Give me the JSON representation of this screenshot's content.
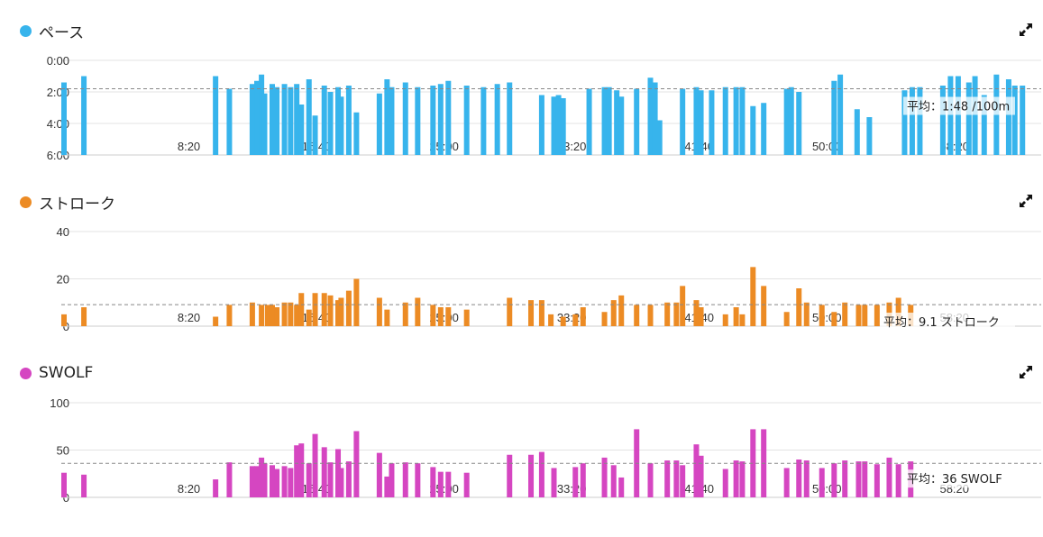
{
  "panels": [
    {
      "id": "pace",
      "title": "ペース",
      "color": "#37b4ec"
    },
    {
      "id": "stroke",
      "title": "ストローク",
      "color": "#ec8b24"
    },
    {
      "id": "swolf",
      "title": "SWOLF",
      "color": "#d546c1"
    }
  ],
  "icons": {
    "expand": "expand-arrows-icon"
  },
  "chart_data": [
    {
      "type": "bar",
      "title": "ペース",
      "color": "#37b4ec",
      "inverted_y": true,
      "ylim": [
        0,
        6
      ],
      "yticks": [
        "0:00",
        "2:00",
        "4:00",
        "6:00"
      ],
      "x_range_minutes": [
        0,
        64
      ],
      "xticks": [
        "8:20",
        "16:40",
        "25:00",
        "33:20",
        "41:40",
        "50:00",
        "58:20"
      ],
      "average_value": 1.8,
      "average_label": "平均：1:48 /100m",
      "bars": [
        [
          0.0,
          1.4
        ],
        [
          1.3,
          1.0
        ],
        [
          9.9,
          1.0
        ],
        [
          10.8,
          1.8
        ],
        [
          12.3,
          1.5
        ],
        [
          12.6,
          1.3
        ],
        [
          12.9,
          0.9
        ],
        [
          13.1,
          2.1
        ],
        [
          13.6,
          1.5
        ],
        [
          13.9,
          1.7
        ],
        [
          14.4,
          1.5
        ],
        [
          14.8,
          1.7
        ],
        [
          15.2,
          1.5
        ],
        [
          15.5,
          2.8
        ],
        [
          16.0,
          1.2
        ],
        [
          16.4,
          3.5
        ],
        [
          17.0,
          1.6
        ],
        [
          17.4,
          2.0
        ],
        [
          17.9,
          1.7
        ],
        [
          18.1,
          2.3
        ],
        [
          18.6,
          1.6
        ],
        [
          19.1,
          3.3
        ],
        [
          20.6,
          2.1
        ],
        [
          21.1,
          1.2
        ],
        [
          21.4,
          1.7
        ],
        [
          22.3,
          1.4
        ],
        [
          23.1,
          1.7
        ],
        [
          24.1,
          1.6
        ],
        [
          24.6,
          1.5
        ],
        [
          25.1,
          1.3
        ],
        [
          26.3,
          1.6
        ],
        [
          27.4,
          1.7
        ],
        [
          28.3,
          1.5
        ],
        [
          29.1,
          1.4
        ],
        [
          31.2,
          2.2
        ],
        [
          32.0,
          2.3
        ],
        [
          32.3,
          2.2
        ],
        [
          32.6,
          2.4
        ],
        [
          34.3,
          1.8
        ],
        [
          35.3,
          1.7
        ],
        [
          35.6,
          1.7
        ],
        [
          36.1,
          1.9
        ],
        [
          36.4,
          2.3
        ],
        [
          37.4,
          1.8
        ],
        [
          38.3,
          1.1
        ],
        [
          38.6,
          1.4
        ],
        [
          38.9,
          3.8
        ],
        [
          40.4,
          1.8
        ],
        [
          41.3,
          1.7
        ],
        [
          41.6,
          1.9
        ],
        [
          42.3,
          1.9
        ],
        [
          43.2,
          1.7
        ],
        [
          43.9,
          1.7
        ],
        [
          44.3,
          1.7
        ],
        [
          45.0,
          2.9
        ],
        [
          45.7,
          2.7
        ],
        [
          47.2,
          1.8
        ],
        [
          47.5,
          1.7
        ],
        [
          48.0,
          2.0
        ],
        [
          50.3,
          1.3
        ],
        [
          50.7,
          0.9
        ],
        [
          51.8,
          3.1
        ],
        [
          52.6,
          3.6
        ],
        [
          54.9,
          1.9
        ],
        [
          55.4,
          1.7
        ],
        [
          55.9,
          1.7
        ],
        [
          57.4,
          1.6
        ],
        [
          57.9,
          1.0
        ],
        [
          58.4,
          1.0
        ],
        [
          59.1,
          1.4
        ],
        [
          59.5,
          1.0
        ],
        [
          60.1,
          2.2
        ],
        [
          60.9,
          0.9
        ],
        [
          61.7,
          1.2
        ],
        [
          62.1,
          1.6
        ],
        [
          62.6,
          1.6
        ]
      ]
    },
    {
      "type": "bar",
      "title": "ストローク",
      "color": "#ec8b24",
      "ylim": [
        0,
        40
      ],
      "yticks": [
        "0",
        "20",
        "40"
      ],
      "x_range_minutes": [
        0,
        64
      ],
      "xticks": [
        "8:20",
        "16:40",
        "25:00",
        "33:20",
        "41:40",
        "50:00",
        "58:20"
      ],
      "average_value": 9.1,
      "average_label": "平均：9.1 ストローク",
      "bars": [
        [
          0.0,
          5
        ],
        [
          1.3,
          8
        ],
        [
          9.9,
          4
        ],
        [
          10.8,
          9
        ],
        [
          12.3,
          10
        ],
        [
          12.9,
          9
        ],
        [
          13.3,
          9
        ],
        [
          13.6,
          9
        ],
        [
          13.9,
          8
        ],
        [
          14.4,
          10
        ],
        [
          14.8,
          10
        ],
        [
          15.2,
          9
        ],
        [
          15.5,
          14
        ],
        [
          16.0,
          7
        ],
        [
          16.4,
          14
        ],
        [
          17.0,
          14
        ],
        [
          17.4,
          13
        ],
        [
          17.9,
          11
        ],
        [
          18.1,
          12
        ],
        [
          18.6,
          15
        ],
        [
          19.1,
          20
        ],
        [
          20.6,
          12
        ],
        [
          21.1,
          7
        ],
        [
          22.3,
          10
        ],
        [
          23.1,
          12
        ],
        [
          24.1,
          9
        ],
        [
          24.6,
          8
        ],
        [
          25.1,
          8
        ],
        [
          26.3,
          7
        ],
        [
          29.1,
          12
        ],
        [
          30.5,
          11
        ],
        [
          31.2,
          11
        ],
        [
          31.8,
          5
        ],
        [
          32.6,
          4
        ],
        [
          33.4,
          5
        ],
        [
          33.9,
          8
        ],
        [
          35.3,
          6
        ],
        [
          35.9,
          11
        ],
        [
          36.4,
          13
        ],
        [
          37.4,
          9
        ],
        [
          38.3,
          9
        ],
        [
          39.4,
          10
        ],
        [
          40.0,
          10
        ],
        [
          40.4,
          17
        ],
        [
          41.3,
          11
        ],
        [
          41.6,
          8
        ],
        [
          43.2,
          5
        ],
        [
          43.9,
          8
        ],
        [
          44.3,
          5
        ],
        [
          45.0,
          25
        ],
        [
          45.7,
          17
        ],
        [
          47.2,
          6
        ],
        [
          48.0,
          16
        ],
        [
          48.5,
          10
        ],
        [
          49.5,
          9
        ],
        [
          50.3,
          6
        ],
        [
          51.0,
          10
        ],
        [
          51.9,
          9
        ],
        [
          52.3,
          9
        ],
        [
          53.1,
          9
        ],
        [
          53.9,
          10
        ],
        [
          54.5,
          12
        ],
        [
          55.3,
          9
        ]
      ]
    },
    {
      "type": "bar",
      "title": "SWOLF",
      "color": "#d546c1",
      "ylim": [
        0,
        100
      ],
      "yticks": [
        "0",
        "50",
        "100"
      ],
      "x_range_minutes": [
        0,
        64
      ],
      "xticks": [
        "8:20",
        "16:40",
        "25:00",
        "33:20",
        "41:40",
        "50:00",
        "58:20"
      ],
      "average_value": 36,
      "average_label": "平均：36 SWOLF",
      "bars": [
        [
          0.0,
          26
        ],
        [
          1.3,
          24
        ],
        [
          9.9,
          19
        ],
        [
          10.8,
          37
        ],
        [
          12.3,
          33
        ],
        [
          12.6,
          33
        ],
        [
          12.9,
          42
        ],
        [
          13.1,
          36
        ],
        [
          13.6,
          34
        ],
        [
          13.9,
          30
        ],
        [
          14.4,
          33
        ],
        [
          14.8,
          31
        ],
        [
          15.2,
          55
        ],
        [
          15.5,
          57
        ],
        [
          16.0,
          36
        ],
        [
          16.4,
          67
        ],
        [
          17.0,
          53
        ],
        [
          17.4,
          37
        ],
        [
          17.9,
          51
        ],
        [
          18.1,
          31
        ],
        [
          18.6,
          38
        ],
        [
          19.1,
          70
        ],
        [
          20.6,
          47
        ],
        [
          21.1,
          22
        ],
        [
          21.4,
          36
        ],
        [
          22.3,
          37
        ],
        [
          23.1,
          36
        ],
        [
          24.1,
          32
        ],
        [
          24.6,
          27
        ],
        [
          25.1,
          27
        ],
        [
          26.3,
          26
        ],
        [
          29.1,
          45
        ],
        [
          30.5,
          45
        ],
        [
          31.2,
          48
        ],
        [
          32.0,
          31
        ],
        [
          33.4,
          32
        ],
        [
          33.9,
          36
        ],
        [
          35.3,
          42
        ],
        [
          35.9,
          34
        ],
        [
          36.4,
          21
        ],
        [
          37.4,
          72
        ],
        [
          38.3,
          36
        ],
        [
          39.4,
          39
        ],
        [
          40.0,
          39
        ],
        [
          40.4,
          34
        ],
        [
          41.3,
          56
        ],
        [
          41.6,
          44
        ],
        [
          43.2,
          30
        ],
        [
          43.9,
          39
        ],
        [
          44.3,
          38
        ],
        [
          45.0,
          72
        ],
        [
          45.7,
          72
        ],
        [
          47.2,
          31
        ],
        [
          48.0,
          40
        ],
        [
          48.5,
          39
        ],
        [
          49.5,
          31
        ],
        [
          50.3,
          36
        ],
        [
          51.0,
          39
        ],
        [
          51.9,
          38
        ],
        [
          52.3,
          38
        ],
        [
          53.1,
          35
        ],
        [
          53.9,
          42
        ],
        [
          54.5,
          35
        ],
        [
          55.3,
          38
        ]
      ]
    }
  ]
}
